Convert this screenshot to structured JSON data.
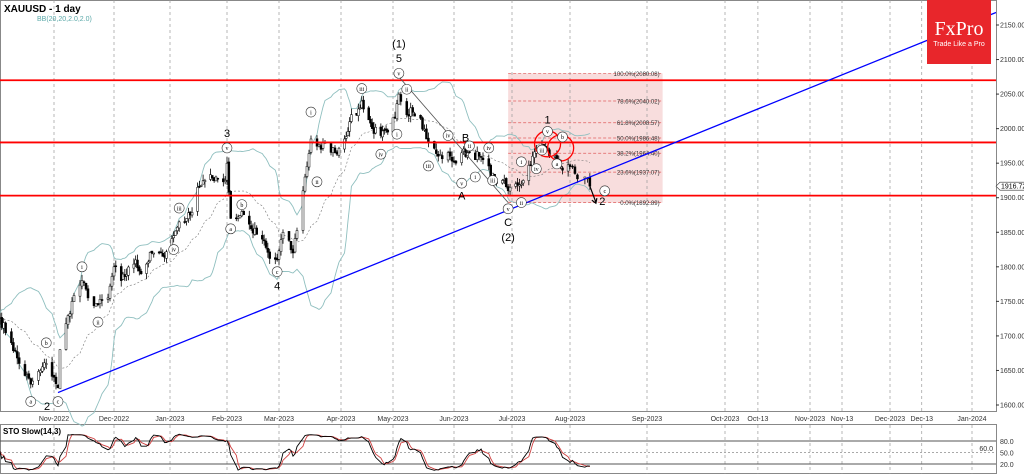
{
  "header": {
    "symbol_title": "XAUUSD - 1 day",
    "indicator": "BB(20,20,2.0,2.0)"
  },
  "logo": {
    "brand": "FxPro",
    "tagline": "Trade Like a Pro",
    "color": "#e8262b"
  },
  "stochastic": {
    "label": "STO Slow(14,3)",
    "levels": [
      "80.0",
      "50.0",
      "20.0"
    ],
    "current": "60.0",
    "k_color": "#000000",
    "d_color": "#d04040"
  },
  "chart_data": {
    "type": "candlestick",
    "title": "XAUUSD - 1 day",
    "ylim": [
      1580,
      2190
    ],
    "y_ticks": [
      "2150.00",
      "2100.00",
      "2050.00",
      "2000.00",
      "1950.00",
      "1900.00",
      "1850.00",
      "1800.00",
      "1750.00",
      "1700.00",
      "1650.00",
      "1600.00"
    ],
    "current_price": "1916.72",
    "x_ticks": [
      {
        "date": "2022-11-01",
        "label": "Nov-2022"
      },
      {
        "date": "2022-12-01",
        "label": "Dec-2022"
      },
      {
        "date": "2023-01-01",
        "label": "Jan-2023"
      },
      {
        "date": "2023-02-01",
        "label": "Feb-2023"
      },
      {
        "date": "2023-03-01",
        "label": "Mar-2023"
      },
      {
        "date": "2023-04-01",
        "label": "Apr-2023"
      },
      {
        "date": "2023-05-01",
        "label": "May-2023"
      },
      {
        "date": "2023-06-01",
        "label": "Jun-2023"
      },
      {
        "date": "2023-07-01",
        "label": "Jul-2023"
      },
      {
        "date": "2023-08-01",
        "label": "Aug-2023"
      },
      {
        "date": "2023-09-01",
        "label": "Sep-2023"
      },
      {
        "date": "2023-10-01",
        "label": "Oct-2023"
      },
      {
        "date": "2023-10-13",
        "label": "Oct-13"
      },
      {
        "date": "2023-11-01",
        "label": "Nov-2023"
      },
      {
        "date": "2023-11-13",
        "label": "Nov-13"
      },
      {
        "date": "2023-12-01",
        "label": "Dec-2023"
      },
      {
        "date": "2023-12-13",
        "label": "Dec-13"
      },
      {
        "date": "2024-01-01",
        "label": "Jan-2024"
      }
    ],
    "closes": [
      [
        "2022-10-04",
        1725
      ],
      [
        "2022-10-10",
        1690
      ],
      [
        "2022-10-14",
        1660
      ],
      [
        "2022-10-20",
        1630
      ],
      [
        "2022-10-25",
        1650
      ],
      [
        "2022-10-28",
        1660
      ],
      [
        "2022-11-01",
        1640
      ],
      [
        "2022-11-03",
        1625
      ],
      [
        "2022-11-04",
        1680
      ],
      [
        "2022-11-10",
        1750
      ],
      [
        "2022-11-15",
        1780
      ],
      [
        "2022-11-18",
        1755
      ],
      [
        "2022-11-23",
        1745
      ],
      [
        "2022-11-28",
        1755
      ],
      [
        "2022-12-01",
        1800
      ],
      [
        "2022-12-05",
        1780
      ],
      [
        "2022-12-13",
        1810
      ],
      [
        "2022-12-16",
        1790
      ],
      [
        "2022-12-22",
        1820
      ],
      [
        "2022-12-28",
        1815
      ],
      [
        "2023-01-03",
        1845
      ],
      [
        "2023-01-06",
        1865
      ],
      [
        "2023-01-10",
        1870
      ],
      [
        "2023-01-12",
        1875
      ],
      [
        "2023-01-16",
        1915
      ],
      [
        "2023-01-20",
        1925
      ],
      [
        "2023-01-26",
        1930
      ],
      [
        "2023-01-31",
        1925
      ],
      [
        "2023-02-01",
        1950
      ],
      [
        "2023-02-03",
        1870
      ],
      [
        "2023-02-06",
        1870
      ],
      [
        "2023-02-09",
        1880
      ],
      [
        "2023-02-14",
        1855
      ],
      [
        "2023-02-20",
        1840
      ],
      [
        "2023-02-24",
        1812
      ],
      [
        "2023-02-28",
        1810
      ],
      [
        "2023-03-03",
        1850
      ],
      [
        "2023-03-08",
        1820
      ],
      [
        "2023-03-13",
        1910
      ],
      [
        "2023-03-17",
        1985
      ],
      [
        "2023-03-22",
        1970
      ],
      [
        "2023-03-24",
        1980
      ],
      [
        "2023-03-29",
        1965
      ],
      [
        "2023-04-03",
        1985
      ],
      [
        "2023-04-06",
        2010
      ],
      [
        "2023-04-12",
        2030
      ],
      [
        "2023-04-13",
        2040
      ],
      [
        "2023-04-19",
        2000
      ],
      [
        "2023-04-24",
        1990
      ],
      [
        "2023-04-28",
        1995
      ],
      [
        "2023-05-02",
        2015
      ],
      [
        "2023-05-04",
        2050
      ],
      [
        "2023-05-08",
        2020
      ],
      [
        "2023-05-10",
        2030
      ],
      [
        "2023-05-15",
        2015
      ],
      [
        "2023-05-19",
        1980
      ],
      [
        "2023-05-24",
        1960
      ],
      [
        "2023-05-30",
        1960
      ],
      [
        "2023-06-02",
        1950
      ],
      [
        "2023-06-05",
        1965
      ],
      [
        "2023-06-09",
        1965
      ],
      [
        "2023-06-14",
        1960
      ],
      [
        "2023-06-16",
        1955
      ],
      [
        "2023-06-22",
        1925
      ],
      [
        "2023-06-26",
        1925
      ],
      [
        "2023-06-29",
        1910
      ],
      [
        "2023-07-03",
        1920
      ],
      [
        "2023-07-07",
        1925
      ],
      [
        "2023-07-12",
        1960
      ],
      [
        "2023-07-18",
        1975
      ],
      [
        "2023-07-20",
        1970
      ],
      [
        "2023-07-24",
        1960
      ],
      [
        "2023-07-27",
        1945
      ],
      [
        "2023-08-01",
        1945
      ],
      [
        "2023-08-03",
        1935
      ],
      [
        "2023-08-07",
        1930
      ],
      [
        "2023-08-09",
        1916.72
      ]
    ],
    "horizontal_levels": [
      {
        "price": 2070,
        "color": "#ff0000"
      },
      {
        "price": 1980,
        "color": "#ff0000"
      },
      {
        "price": 1903,
        "color": "#ff0000"
      }
    ],
    "trendline": {
      "color": "#0000ff",
      "points": [
        [
          "2022-11-03",
          1618
        ],
        [
          "2023-06-29",
          1882
        ]
      ]
    },
    "wave_line": {
      "color": "#555555",
      "points": [
        [
          "2023-05-04",
          2075
        ],
        [
          "2023-06-29",
          1893
        ]
      ]
    },
    "fibonacci": {
      "start": "2023-06-29",
      "end": "2023-09-07",
      "color": "#f4c7c7",
      "levels": [
        {
          "price": 2080.08,
          "label": "100.0%(2080.08)"
        },
        {
          "price": 2040.02,
          "label": "78.6%(2040.02)"
        },
        {
          "price": 2008.57,
          "label": "61.8%(2008.57)"
        },
        {
          "price": 1986.48,
          "label": "50.0%(1986.48)"
        },
        {
          "price": 1964.4,
          "label": "38.2%(1964.40)"
        },
        {
          "price": 1937.07,
          "label": "23.6%(1937.07)"
        },
        {
          "price": 1892.89,
          "label": "0.0%(1892.89)"
        }
      ]
    },
    "highlight_circles": [
      [
        "2023-07-20",
        1978
      ],
      [
        "2023-07-27",
        1972
      ]
    ],
    "wave_labels": [
      {
        "date": "2022-10-20",
        "price": 1605,
        "text": "a",
        "circled": true
      },
      {
        "date": "2022-10-28",
        "price": 1690,
        "text": "b",
        "circled": true
      },
      {
        "date": "2022-11-03",
        "price": 1605,
        "text": "c",
        "circled": true
      },
      {
        "date": "2022-11-03",
        "price": 1585,
        "text": "2",
        "circled": false
      },
      {
        "date": "2022-11-15",
        "price": 1800,
        "text": "i",
        "circled": true
      },
      {
        "date": "2022-11-23",
        "price": 1720,
        "text": "ii",
        "circled": true
      },
      {
        "date": "2023-01-06",
        "price": 1885,
        "text": "iii",
        "circled": true
      },
      {
        "date": "2023-01-03",
        "price": 1825,
        "text": "iv",
        "circled": true
      },
      {
        "date": "2023-02-01",
        "price": 1972,
        "text": "v",
        "circled": true
      },
      {
        "date": "2023-02-01",
        "price": 1994,
        "text": "3",
        "circled": false
      },
      {
        "date": "2023-02-03",
        "price": 1855,
        "text": "a",
        "circled": true
      },
      {
        "date": "2023-02-09",
        "price": 1890,
        "text": "b",
        "circled": true
      },
      {
        "date": "2023-02-28",
        "price": 1793,
        "text": "c",
        "circled": true
      },
      {
        "date": "2023-02-28",
        "price": 1773,
        "text": "4",
        "circled": false
      },
      {
        "date": "2023-03-17",
        "price": 2024,
        "text": "i",
        "circled": true
      },
      {
        "date": "2023-03-20",
        "price": 1923,
        "text": "ii",
        "circled": true
      },
      {
        "date": "2023-04-13",
        "price": 2058,
        "text": "iii",
        "circled": true
      },
      {
        "date": "2023-04-24",
        "price": 1963,
        "text": "iv",
        "circled": true
      },
      {
        "date": "2023-05-04",
        "price": 2080,
        "text": "v",
        "circled": true
      },
      {
        "date": "2023-05-04",
        "price": 2102,
        "text": "5",
        "circled": false
      },
      {
        "date": "2023-05-04",
        "price": 2123,
        "text": "(1)",
        "circled": false
      },
      {
        "date": "2023-05-03",
        "price": 1992,
        "text": "i",
        "circled": true
      },
      {
        "date": "2023-05-08",
        "price": 2057,
        "text": "ii",
        "circled": true
      },
      {
        "date": "2023-05-19",
        "price": 1946,
        "text": "iii",
        "circled": true
      },
      {
        "date": "2023-05-29",
        "price": 1990,
        "text": "iv",
        "circled": true
      },
      {
        "date": "2023-06-05",
        "price": 1921,
        "text": "v",
        "circled": true
      },
      {
        "date": "2023-06-05",
        "price": 1903,
        "text": "A",
        "circled": false
      },
      {
        "date": "2023-06-07",
        "price": 1987,
        "text": "B",
        "circled": false
      },
      {
        "date": "2023-06-09",
        "price": 1975,
        "text": "ii",
        "circled": true
      },
      {
        "date": "2023-06-12",
        "price": 1930,
        "text": "i",
        "circled": true
      },
      {
        "date": "2023-06-19",
        "price": 1972,
        "text": "iv",
        "circled": true
      },
      {
        "date": "2023-06-21",
        "price": 1925,
        "text": "iii",
        "circled": true
      },
      {
        "date": "2023-06-29",
        "price": 1884,
        "text": "v",
        "circled": true
      },
      {
        "date": "2023-06-29",
        "price": 1865,
        "text": "C",
        "circled": false
      },
      {
        "date": "2023-06-29",
        "price": 1843,
        "text": "(2)",
        "circled": false
      },
      {
        "date": "2023-07-06",
        "price": 1952,
        "text": "i",
        "circled": true
      },
      {
        "date": "2023-07-06",
        "price": 1893,
        "text": "ii",
        "circled": true
      },
      {
        "date": "2023-07-17",
        "price": 1969,
        "text": "iii",
        "circled": true
      },
      {
        "date": "2023-07-14",
        "price": 1942,
        "text": "iv",
        "circled": true
      },
      {
        "date": "2023-07-20",
        "price": 1996,
        "text": "v",
        "circled": true
      },
      {
        "date": "2023-07-20",
        "price": 2013,
        "text": "1",
        "circled": false
      },
      {
        "date": "2023-07-25",
        "price": 1949,
        "text": "a",
        "circled": true
      },
      {
        "date": "2023-07-28",
        "price": 1988,
        "text": "b",
        "circled": true
      },
      {
        "date": "2023-08-15",
        "price": 1910,
        "text": "c",
        "circled": true
      },
      {
        "date": "2023-08-14",
        "price": 1895,
        "text": "2",
        "circled": false
      }
    ]
  }
}
